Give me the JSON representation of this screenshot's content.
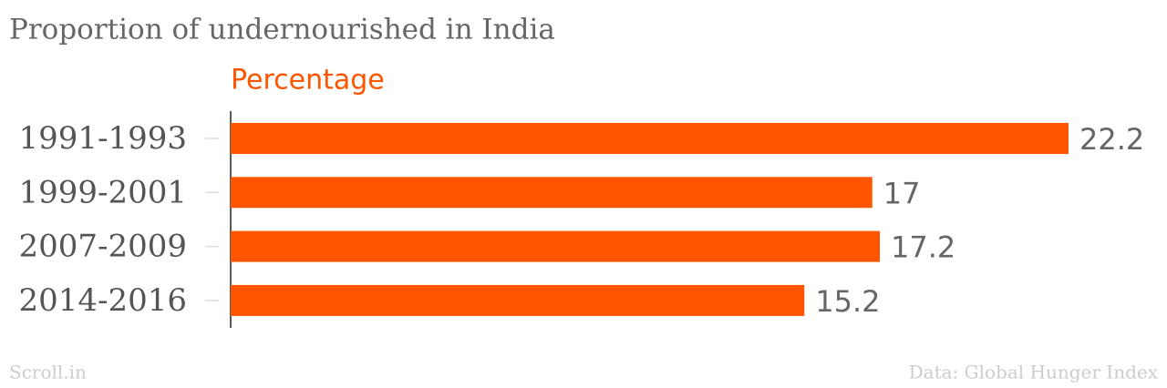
{
  "chart_data": {
    "type": "bar",
    "orientation": "horizontal",
    "title": "Proportion of undernourished in India",
    "subtitle": "Percentage",
    "categories": [
      "1991-1993",
      "1999-2001",
      "2007-2009",
      "2014-2016"
    ],
    "values": [
      22.2,
      17,
      17.2,
      15.2
    ],
    "color": "#ff5400",
    "credit": "Scroll.in",
    "source": "Data: Global Hunger Index"
  }
}
